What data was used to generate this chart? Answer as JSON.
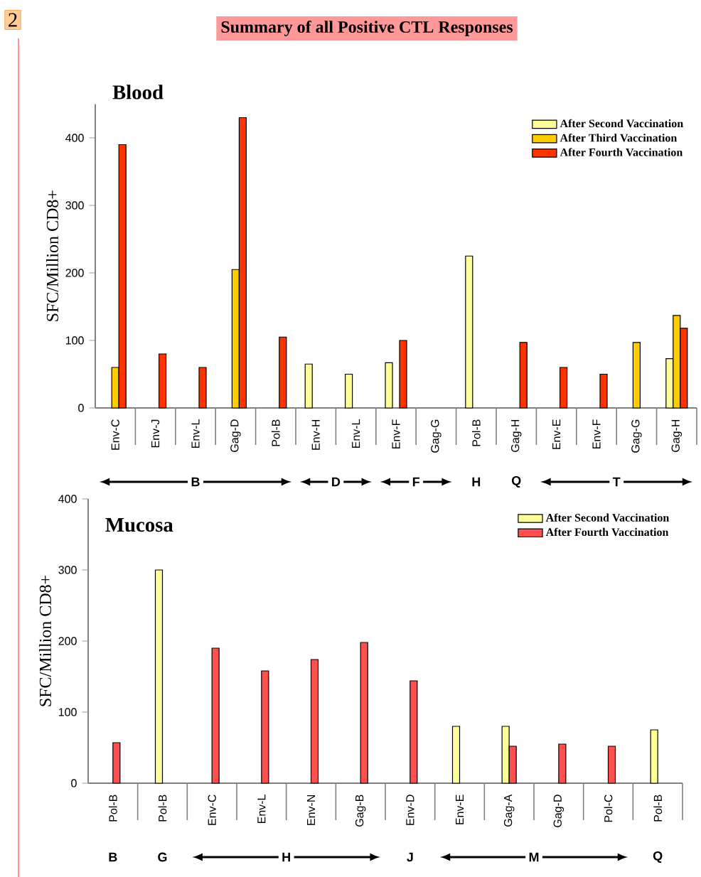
{
  "chart_data": [
    {
      "type": "bar",
      "title": "Summary of all Positive CTL Responses",
      "subtitle": "Blood",
      "ylabel": "SFC/Million CD8+",
      "annotations": [
        "2",
        "B",
        "D",
        "F",
        "H",
        "Q",
        "T"
      ],
      "categories": [
        "Env-C",
        "Env-J",
        "Env-L",
        "Gag-D",
        "Pol-B",
        "Env-H",
        "Env-L",
        "Env-F",
        "Gag-G",
        "Pol-B",
        "Gag-H",
        "Env-E",
        "Env-F",
        "Gag-G",
        "Gag-H"
      ],
      "series": [
        {
          "name": "After Second Vaccination",
          "color": "#ffff99",
          "values": [
            null,
            null,
            null,
            null,
            null,
            65,
            50,
            67,
            null,
            225,
            null,
            null,
            null,
            null,
            73
          ]
        },
        {
          "name": "After Third Vaccination",
          "color": "#ffcc00",
          "values": [
            60,
            null,
            null,
            205,
            null,
            null,
            null,
            null,
            null,
            null,
            null,
            null,
            null,
            97,
            137
          ]
        },
        {
          "name": "After Fourth Vaccination",
          "color": "#ff3300",
          "values": [
            390,
            80,
            60,
            430,
            105,
            null,
            null,
            100,
            null,
            null,
            97,
            60,
            50,
            null,
            118
          ]
        }
      ],
      "ylim": [
        0,
        450
      ],
      "yticks": [
        0,
        100,
        200,
        300,
        400
      ],
      "legend": "top right"
    },
    {
      "type": "bar",
      "title": "Mucosa",
      "ylabel": "SFC/Million CD8+",
      "annotations": [
        "B",
        "G",
        "H",
        "J",
        "M",
        "Q"
      ],
      "categories": [
        "Pol-B",
        "Pol-B",
        "Env-C",
        "Env-L",
        "Env-N",
        "Gag-B",
        "Env-D",
        "Env-E",
        "Gag-A",
        "Gag-D",
        "Pol-C",
        "Pol-B"
      ],
      "series": [
        {
          "name": "After Second Vaccination",
          "color": "#ffff99",
          "values": [
            null,
            300,
            null,
            null,
            null,
            null,
            null,
            80,
            80,
            null,
            null,
            75
          ]
        },
        {
          "name": "After Fourth Vaccination",
          "color": "#ff5050",
          "values": [
            57,
            null,
            190,
            158,
            174,
            198,
            144,
            null,
            52,
            55,
            52,
            null
          ]
        }
      ],
      "ylim": [
        0,
        400
      ],
      "yticks": [
        0,
        100,
        200,
        300,
        400
      ],
      "legend": "top right"
    }
  ]
}
